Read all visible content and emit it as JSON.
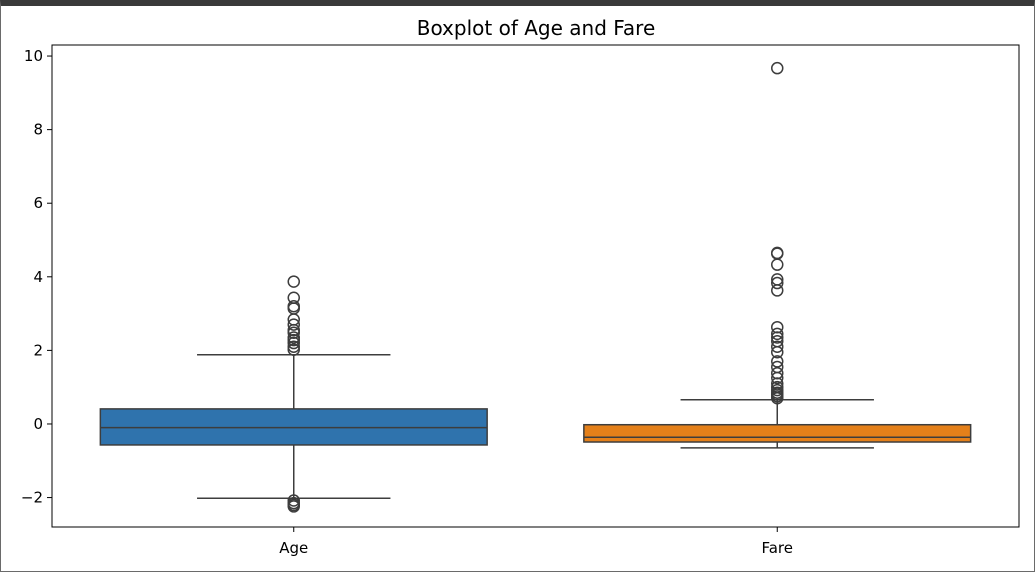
{
  "chart_data": {
    "type": "box",
    "title": "Boxplot of Age and Fare",
    "xlabel": "",
    "ylabel": "",
    "ylim": [
      -2.8,
      10.3
    ],
    "yticks": [
      10,
      8,
      6,
      4,
      2,
      0,
      -2
    ],
    "ytick_labels": [
      "10",
      "8",
      "6",
      "4",
      "2",
      "0",
      "−2"
    ],
    "grid": false,
    "categories": [
      "Age",
      "Fare"
    ],
    "boxes": [
      {
        "category": "Age",
        "color": "#2f73ad",
        "whisker_low": -2.02,
        "q1": -0.57,
        "median": -0.1,
        "q3": 0.41,
        "whisker_high": 1.88,
        "outliers": [
          3.87,
          3.43,
          3.2,
          3.14,
          2.84,
          2.7,
          2.55,
          2.48,
          2.35,
          2.28,
          2.2,
          2.1,
          2.02,
          -2.08,
          -2.15,
          -2.2,
          -2.24
        ]
      },
      {
        "category": "Fare",
        "color": "#e4801a",
        "whisker_low": -0.65,
        "q1": -0.49,
        "median": -0.36,
        "q3": -0.02,
        "whisker_high": 0.66,
        "outliers": [
          9.67,
          4.65,
          4.63,
          4.33,
          3.93,
          3.83,
          3.63,
          2.63,
          2.45,
          2.35,
          2.25,
          2.1,
          1.95,
          1.7,
          1.55,
          1.38,
          1.25,
          1.1,
          1.0,
          0.92,
          0.85,
          0.8,
          0.75,
          0.7
        ]
      }
    ]
  }
}
